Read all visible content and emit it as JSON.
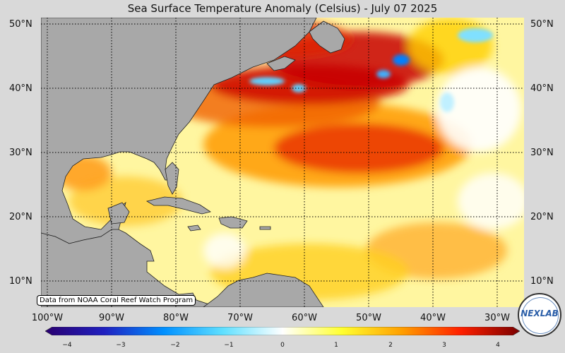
{
  "title": "Sea Surface Temperature Anomaly (Celsius) - July 07 2025",
  "latitude_labels": [
    "50°N",
    "40°N",
    "30°N",
    "20°N",
    "10°N"
  ],
  "longitude_labels": [
    "100°W",
    "90°W",
    "80°W",
    "70°W",
    "60°W",
    "50°W",
    "40°W",
    "30°W"
  ],
  "credit": "Data from NOAA Coral Reef Watch Program",
  "colorbar": {
    "ticks": [
      "−4",
      "−3",
      "−2",
      "−1",
      "0",
      "1",
      "2",
      "3",
      "4"
    ],
    "range": [
      -4,
      4
    ],
    "colors": [
      "#2a0070",
      "#2020c0",
      "#0090ff",
      "#60e0ff",
      "#ffffff",
      "#ffff30",
      "#ffa000",
      "#ff2000",
      "#7a0000"
    ]
  },
  "logo": {
    "text": "NEXLAB"
  },
  "colors": {
    "land": "#a8a8a8",
    "background": "#d9d9d9",
    "warm_anomaly": "#e03000",
    "cool_anomaly": "#0080ff"
  }
}
